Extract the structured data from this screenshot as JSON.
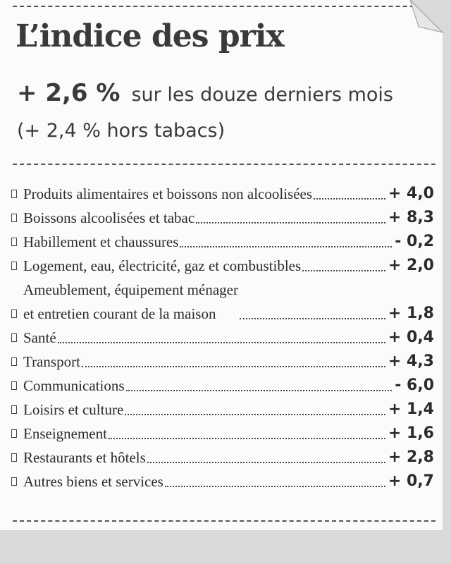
{
  "header": {
    "title": "L’indice des prix",
    "headline": {
      "value": "+ 2,6 %",
      "text": "sur les douze derniers mois"
    },
    "note": "(+ 2,4 % hors tabacs)"
  },
  "items": [
    {
      "lines": [
        "Produits alimentaires et boissons non alcoolisées"
      ],
      "value": "+ 4,0"
    },
    {
      "lines": [
        "Boissons alcoolisées et tabac"
      ],
      "value": "+ 8,3"
    },
    {
      "lines": [
        "Habillement et chaussures"
      ],
      "value": "- 0,2"
    },
    {
      "lines": [
        "Logement, eau, électricité, gaz et combustibles"
      ],
      "value": "+ 2,0"
    },
    {
      "lines": [
        "Ameublement, équipement ménager",
        "et entretien courant de la maison"
      ],
      "value": "+ 1,8"
    },
    {
      "lines": [
        "Santé"
      ],
      "value": "+ 0,4"
    },
    {
      "lines": [
        "Transport"
      ],
      "value": "+ 4,3"
    },
    {
      "lines": [
        "Communications"
      ],
      "value": "- 6,0"
    },
    {
      "lines": [
        "Loisirs et culture"
      ],
      "value": "+ 1,4"
    },
    {
      "lines": [
        "Enseignement"
      ],
      "value": "+ 1,6"
    },
    {
      "lines": [
        "Restaurants et hôtels"
      ],
      "value": "+ 2,8"
    },
    {
      "lines": [
        "Autres biens et services"
      ],
      "value": "+ 0,7"
    }
  ]
}
